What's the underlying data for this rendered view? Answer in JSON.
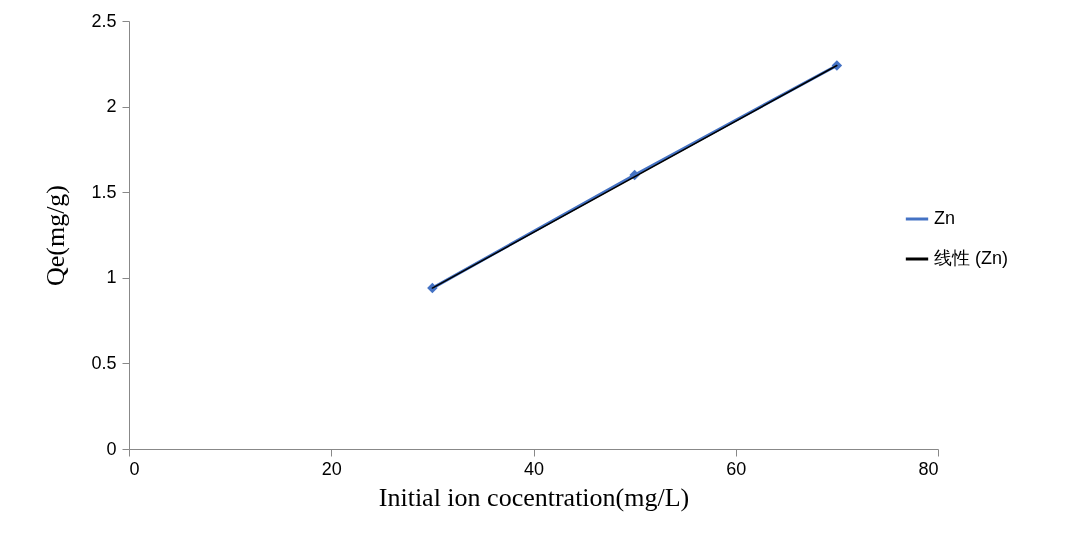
{
  "chart_data": {
    "type": "line",
    "xlabel": "Initial ion cocentration(mg/L)",
    "ylabel": "Qe(mg/g)",
    "xlim": [
      0,
      80
    ],
    "xticks": [
      0,
      20,
      40,
      60,
      80
    ],
    "ylim": [
      0,
      2.5
    ],
    "yticks": [
      0,
      0.5,
      1,
      1.5,
      2,
      2.5
    ],
    "grid": false,
    "legend": "right",
    "series": [
      {
        "name": "Zn",
        "color": "#4472c4",
        "marker": "diamond",
        "x": [
          30,
          50,
          70
        ],
        "values": [
          0.94,
          1.6,
          2.24
        ]
      },
      {
        "name": "线性 (Zn)",
        "color": "#000000",
        "marker": "none",
        "x": [
          30,
          70
        ],
        "values": [
          0.94,
          2.24
        ]
      }
    ]
  }
}
